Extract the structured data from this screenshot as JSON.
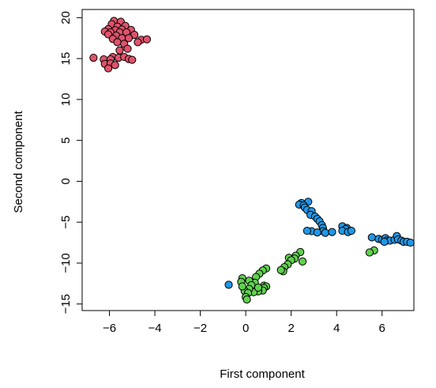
{
  "chart_data": {
    "type": "scatter",
    "title": "",
    "xlabel": "First component",
    "ylabel": "Second component",
    "xlim": [
      -7.2,
      7.4
    ],
    "ylim": [
      -15.8,
      21.0
    ],
    "xticks": [
      -6,
      -4,
      -2,
      0,
      2,
      4,
      6
    ],
    "xtick_labels": [
      "−6",
      "−4",
      "−2",
      "0",
      "2",
      "4",
      "6"
    ],
    "yticks": [
      -15,
      -10,
      -5,
      0,
      5,
      10,
      15,
      20
    ],
    "ytick_labels": [
      "−15",
      "−10",
      "−5",
      "0",
      "5",
      "10",
      "15",
      "20"
    ],
    "grid": false,
    "legend": "none",
    "marker": "filled-circle-black-outline",
    "series": [
      {
        "color": "#DF536B",
        "points": [
          [
            -5.8,
            19.6
          ],
          [
            -5.5,
            19.5
          ],
          [
            -5.9,
            19.2
          ],
          [
            -5.3,
            19.0
          ],
          [
            -5.65,
            18.9
          ],
          [
            -6.05,
            18.6
          ],
          [
            -5.75,
            18.45
          ],
          [
            -5.45,
            18.55
          ],
          [
            -5.05,
            18.5
          ],
          [
            -6.2,
            18.3
          ],
          [
            -5.95,
            18.2
          ],
          [
            -5.55,
            18.2
          ],
          [
            -5.25,
            18.2
          ],
          [
            -4.9,
            17.9
          ],
          [
            -6.05,
            17.95
          ],
          [
            -5.7,
            17.8
          ],
          [
            -5.85,
            17.4
          ],
          [
            -5.45,
            17.5
          ],
          [
            -5.15,
            17.5
          ],
          [
            -4.6,
            17.3
          ],
          [
            -4.35,
            17.35
          ],
          [
            -5.65,
            17.0
          ],
          [
            -5.35,
            16.8
          ],
          [
            -4.75,
            17.0
          ],
          [
            -5.2,
            16.2
          ],
          [
            -5.55,
            16.0
          ],
          [
            -6.7,
            15.1
          ],
          [
            -5.85,
            15.2
          ],
          [
            -5.6,
            15.1
          ],
          [
            -5.35,
            15.2
          ],
          [
            -5.15,
            14.95
          ],
          [
            -5.0,
            14.85
          ],
          [
            -6.25,
            14.9
          ],
          [
            -5.95,
            14.9
          ],
          [
            -6.2,
            14.35
          ],
          [
            -5.95,
            14.4
          ],
          [
            -5.75,
            14.2
          ],
          [
            -6.05,
            13.8
          ]
        ]
      },
      {
        "color": "#2297E6",
        "points": [
          [
            2.75,
            -2.5
          ],
          [
            2.45,
            -2.65
          ],
          [
            2.35,
            -2.85
          ],
          [
            2.55,
            -2.95
          ],
          [
            2.6,
            -3.2
          ],
          [
            2.7,
            -3.5
          ],
          [
            2.9,
            -3.65
          ],
          [
            2.85,
            -4.1
          ],
          [
            3.05,
            -4.3
          ],
          [
            3.15,
            -4.6
          ],
          [
            3.25,
            -4.9
          ],
          [
            3.35,
            -5.35
          ],
          [
            3.4,
            -5.7
          ],
          [
            3.4,
            -6.1
          ],
          [
            3.5,
            -6.3
          ],
          [
            2.9,
            -6.1
          ],
          [
            2.7,
            -6.05
          ],
          [
            3.15,
            -6.25
          ],
          [
            3.8,
            -6.2
          ],
          [
            4.25,
            -5.5
          ],
          [
            4.45,
            -5.7
          ],
          [
            4.4,
            -5.85
          ],
          [
            4.25,
            -6.05
          ],
          [
            4.5,
            -6.2
          ],
          [
            4.65,
            -6.05
          ],
          [
            5.55,
            -6.85
          ],
          [
            5.85,
            -7.05
          ],
          [
            6.0,
            -7.15
          ],
          [
            6.15,
            -6.95
          ],
          [
            6.2,
            -7.25
          ],
          [
            6.35,
            -7.25
          ],
          [
            6.55,
            -7.15
          ],
          [
            6.65,
            -6.7
          ],
          [
            6.7,
            -7.1
          ],
          [
            6.85,
            -7.25
          ],
          [
            6.95,
            -7.4
          ],
          [
            7.1,
            -7.4
          ],
          [
            7.25,
            -7.5
          ],
          [
            6.1,
            -7.4
          ],
          [
            -0.75,
            -12.65
          ]
        ]
      },
      {
        "color": "#61D04F",
        "points": [
          [
            5.65,
            -8.45
          ],
          [
            5.45,
            -8.7
          ],
          [
            2.4,
            -8.65
          ],
          [
            2.2,
            -9.1
          ],
          [
            1.9,
            -9.35
          ],
          [
            2.15,
            -9.45
          ],
          [
            2.0,
            -9.65
          ],
          [
            2.5,
            -9.8
          ],
          [
            1.85,
            -10.15
          ],
          [
            1.7,
            -10.5
          ],
          [
            1.65,
            -11.0
          ],
          [
            1.55,
            -10.85
          ],
          [
            0.9,
            -10.65
          ],
          [
            0.75,
            -10.9
          ],
          [
            0.6,
            -11.3
          ],
          [
            0.45,
            -11.7
          ],
          [
            0.4,
            -12.4
          ],
          [
            0.15,
            -12.15
          ],
          [
            -0.15,
            -11.85
          ],
          [
            -0.2,
            -12.3
          ],
          [
            0.25,
            -12.7
          ],
          [
            0.8,
            -12.75
          ],
          [
            0.9,
            -12.85
          ],
          [
            0.8,
            -13.05
          ],
          [
            0.75,
            -13.35
          ],
          [
            0.55,
            -13.45
          ],
          [
            0.35,
            -13.55
          ],
          [
            0.15,
            -13.15
          ],
          [
            -0.05,
            -13.4
          ],
          [
            0.1,
            -13.65
          ],
          [
            0.0,
            -14.15
          ],
          [
            0.05,
            -14.45
          ],
          [
            -0.15,
            -12.85
          ],
          [
            0.55,
            -13.0
          ]
        ]
      }
    ]
  }
}
